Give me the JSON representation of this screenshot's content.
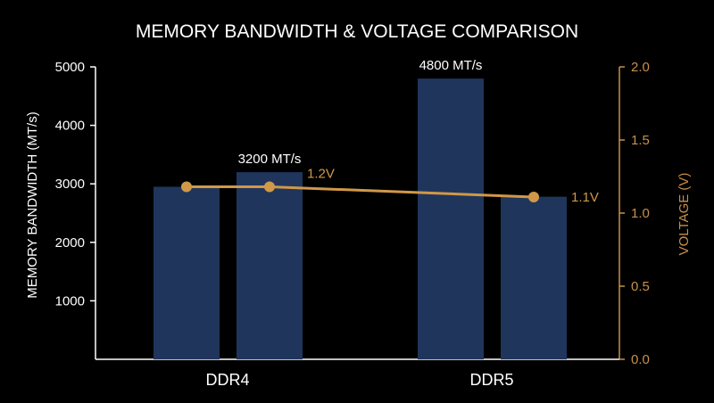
{
  "chart_data": {
    "type": "bar",
    "title": "MEMORY BANDWIDTH & VOLTAGE COMPARISON",
    "categories": [
      "DDR4",
      "DDR5"
    ],
    "y_left": {
      "label": "MEMORY BANDWIDTH (MT/s)",
      "range": [
        0,
        5000
      ],
      "ticks": [
        1000,
        2000,
        3000,
        4000,
        5000
      ]
    },
    "y_right": {
      "label": "VOLTAGE (V)",
      "range": [
        0,
        2.0
      ],
      "ticks": [
        "0.0",
        "0.5",
        "1.0",
        "1.5",
        "2.0"
      ]
    },
    "bars": [
      {
        "category": "DDR4",
        "value": 2950,
        "label": ""
      },
      {
        "category": "DDR4",
        "value": 3200,
        "label": "3200 MT/s"
      },
      {
        "category": "DDR5",
        "value": 4800,
        "label": "4800 MT/s"
      },
      {
        "category": "DDR5",
        "value": 2780,
        "label": ""
      }
    ],
    "voltage_line": {
      "points": [
        {
          "bar_index": 0,
          "value": 1.18,
          "label": ""
        },
        {
          "bar_index": 1,
          "value": 1.18,
          "label": "1.2V"
        },
        {
          "bar_index": 3,
          "value": 1.11,
          "label": "1.1V"
        }
      ]
    },
    "grid": false,
    "legend": "none",
    "colors": {
      "background": "#000000",
      "bar": "#1f355c",
      "line": "#d09848",
      "text": "#ffffff",
      "right_axis": "#c8904a"
    }
  }
}
